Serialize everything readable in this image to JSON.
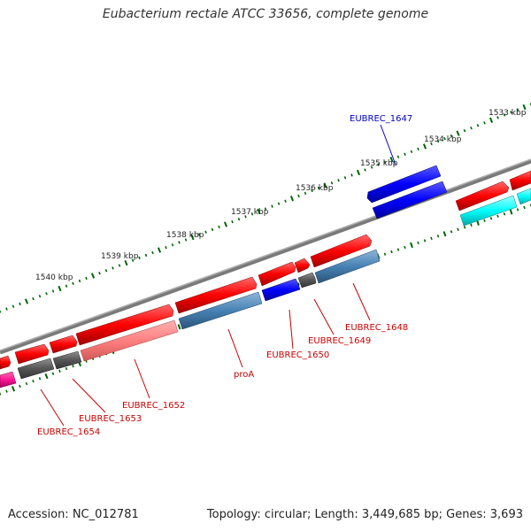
{
  "title": "Eubacterium rectale ATCC 33656, complete genome",
  "footer": {
    "accession": "Accession: NC_012781",
    "summary": "Topology: circular; Length: 3,449,685 bp; Genes: 3,693"
  },
  "scale_labels": [
    "1533 kbp",
    "1534 kbp",
    "1535 kbp",
    "1536 kbp",
    "1537 kbp",
    "1538 kbp",
    "1539 kbp",
    "1540 kbp"
  ],
  "gene_labels": [
    "EUBREC_1647",
    "EUBREC_1648",
    "EUBREC_1649",
    "EUBREC_1650",
    "proA",
    "EUBREC_1652",
    "EUBREC_1653",
    "EUBREC_1654"
  ],
  "colors": {
    "cds_forward": "#ff0000",
    "cds_reverse_steel": "#4682b4",
    "cds_blue": "#0000ff",
    "cds_cyan": "#00ffff",
    "cds_pink": "#ff8080",
    "cds_magenta": "#ff1493",
    "cds_gray": "#555555",
    "backbone": "#808080",
    "ticks": "#006400"
  }
}
